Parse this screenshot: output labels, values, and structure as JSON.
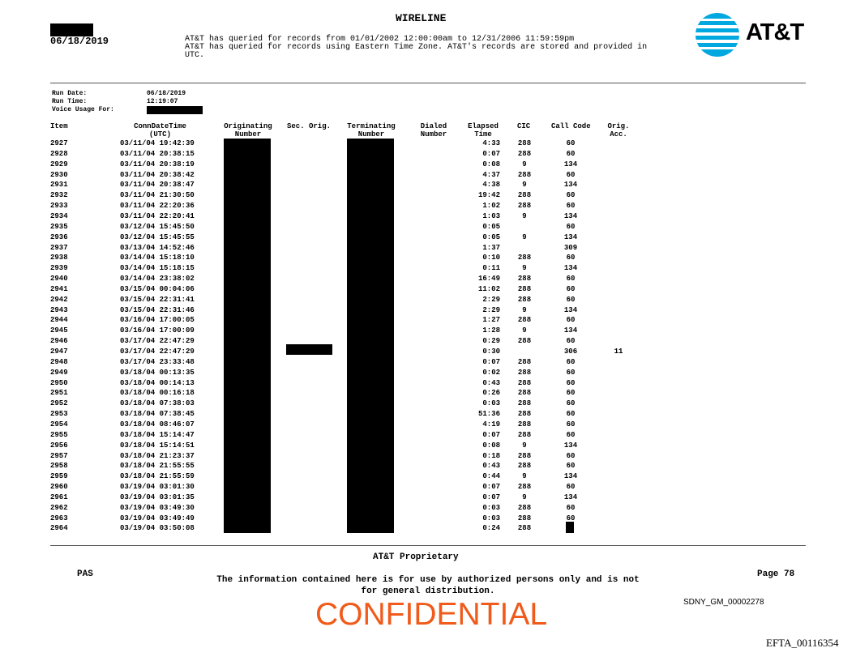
{
  "header": {
    "title": "WIRELINE",
    "date": "06/18/2019",
    "query_lines": [
      "AT&T has queried for records from 01/01/2002 12:00:00am to 12/31/2006 11:59:59pm",
      "AT&T has queried for records using Eastern Time Zone. AT&T's records are stored and provided in",
      "UTC."
    ],
    "logo_text": "AT&T",
    "brand_color": "#00a8e0"
  },
  "run_info": {
    "run_date_label": "Run Date:",
    "run_date": "06/18/2019",
    "run_time_label": "Run Time:",
    "run_time": "12:19:07",
    "voice_usage_label": "Voice Usage For:"
  },
  "columns": {
    "item": "Item",
    "conn": "ConnDateTime",
    "conn2": "(UTC)",
    "orig": "Originating",
    "orig2": "Number",
    "sec": "Sec. Orig.",
    "term": "Terminating",
    "term2": "Number",
    "dialed": "Dialed",
    "dialed2": "Number",
    "elapsed": "Elapsed",
    "elapsed2": "Time",
    "cic": "CIC",
    "callcode": "Call Code",
    "acc": "Orig.",
    "acc2": "Acc."
  },
  "rows": [
    [
      "2927",
      "03/11/04 19:42:39",
      "4:33",
      "288",
      "60",
      ""
    ],
    [
      "2928",
      "03/11/04 20:38:15",
      "0:07",
      "288",
      "60",
      ""
    ],
    [
      "2929",
      "03/11/04 20:38:19",
      "0:08",
      "9",
      "134",
      ""
    ],
    [
      "2930",
      "03/11/04 20:38:42",
      "4:37",
      "288",
      "60",
      ""
    ],
    [
      "2931",
      "03/11/04 20:38:47",
      "4:38",
      "9",
      "134",
      ""
    ],
    [
      "2932",
      "03/11/04 21:30:50",
      "19:42",
      "288",
      "60",
      ""
    ],
    [
      "2933",
      "03/11/04 22:20:36",
      "1:02",
      "288",
      "60",
      ""
    ],
    [
      "2934",
      "03/11/04 22:20:41",
      "1:03",
      "9",
      "134",
      ""
    ],
    [
      "2935",
      "03/12/04 15:45:50",
      "0:05",
      "",
      "60",
      ""
    ],
    [
      "2936",
      "03/12/04 15:45:55",
      "0:05",
      "9",
      "134",
      ""
    ],
    [
      "2937",
      "03/13/04 14:52:46",
      "1:37",
      "",
      "309",
      ""
    ],
    [
      "2938",
      "03/14/04 15:18:10",
      "0:10",
      "288",
      "60",
      ""
    ],
    [
      "2939",
      "03/14/04 15:18:15",
      "0:11",
      "9",
      "134",
      ""
    ],
    [
      "2940",
      "03/14/04 23:38:02",
      "16:49",
      "288",
      "60",
      ""
    ],
    [
      "2941",
      "03/15/04 00:04:06",
      "11:02",
      "288",
      "60",
      ""
    ],
    [
      "2942",
      "03/15/04 22:31:41",
      "2:29",
      "288",
      "60",
      ""
    ],
    [
      "2943",
      "03/15/04 22:31:46",
      "2:29",
      "9",
      "134",
      ""
    ],
    [
      "2944",
      "03/16/04 17:00:05",
      "1:27",
      "288",
      "60",
      ""
    ],
    [
      "2945",
      "03/16/04 17:00:09",
      "1:28",
      "9",
      "134",
      ""
    ],
    [
      "2946",
      "03/17/04 22:47:29",
      "0:29",
      "288",
      "60",
      ""
    ],
    [
      "2947",
      "03/17/04 22:47:29",
      "0:30",
      "",
      "306",
      "11"
    ],
    [
      "2948",
      "03/17/04 23:33:48",
      "0:07",
      "288",
      "60",
      ""
    ],
    [
      "2949",
      "03/18/04 00:13:35",
      "0:02",
      "288",
      "60",
      ""
    ],
    [
      "2950",
      "03/18/04 00:14:13",
      "0:43",
      "288",
      "60",
      ""
    ],
    [
      "2951",
      "03/18/04 00:16:18",
      "0:26",
      "288",
      "60",
      ""
    ],
    [
      "2952",
      "03/18/04 07:38:03",
      "0:03",
      "288",
      "60",
      ""
    ],
    [
      "2953",
      "03/18/04 07:38:45",
      "51:36",
      "288",
      "60",
      ""
    ],
    [
      "2954",
      "03/18/04 08:46:07",
      "4:19",
      "288",
      "60",
      ""
    ],
    [
      "2955",
      "03/18/04 15:14:47",
      "0:07",
      "288",
      "60",
      ""
    ],
    [
      "2956",
      "03/18/04 15:14:51",
      "0:08",
      "9",
      "134",
      ""
    ],
    [
      "2957",
      "03/18/04 21:23:37",
      "0:18",
      "288",
      "60",
      ""
    ],
    [
      "2958",
      "03/18/04 21:55:55",
      "0:43",
      "288",
      "60",
      ""
    ],
    [
      "2959",
      "03/18/04 21:55:59",
      "0:44",
      "9",
      "134",
      ""
    ],
    [
      "2960",
      "03/19/04 03:01:30",
      "0:07",
      "288",
      "60",
      ""
    ],
    [
      "2961",
      "03/19/04 03:01:35",
      "0:07",
      "9",
      "134",
      ""
    ],
    [
      "2962",
      "03/19/04 03:49:30",
      "0:03",
      "288",
      "60",
      ""
    ],
    [
      "2963",
      "03/19/04 03:49:49",
      "0:03",
      "288",
      "60",
      ""
    ],
    [
      "2964",
      "03/19/04 03:50:08",
      "0:24",
      "288",
      "",
      ""
    ]
  ],
  "footer": {
    "proprietary": "AT&T Proprietary",
    "pas": "PAS",
    "page": "Page 78",
    "notice_1": "The information contained here is for use by authorized persons only and is not",
    "notice_2": "for general distribution.",
    "bates": "SDNY_GM_00002278",
    "confidential": "CONFIDENTIAL",
    "confidential_color": "#f05a1a",
    "efta": "EFTA_00116354"
  }
}
